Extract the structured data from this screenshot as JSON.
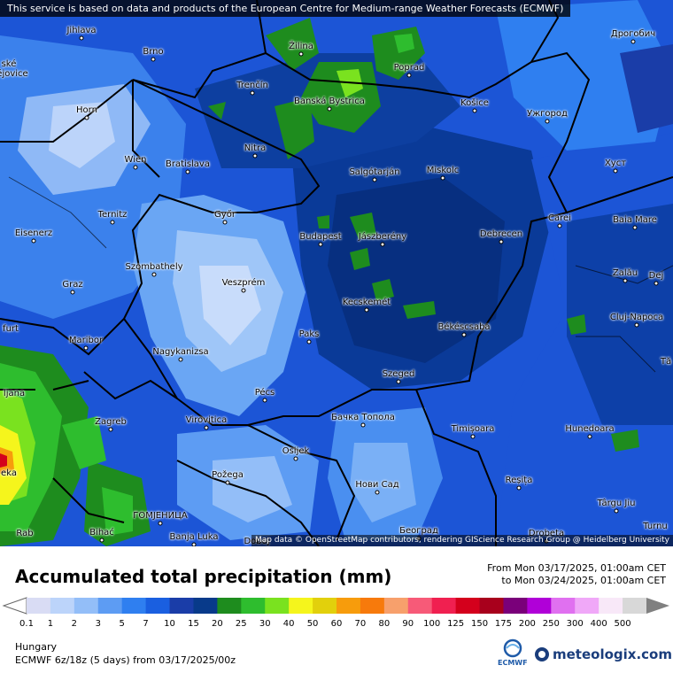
{
  "map": {
    "attribution_top": "This service is based on data and products of the European Centre for Medium-range Weather Forecasts (ECMWF)",
    "attribution_bottom": "Map data © OpenStreetMap contributors, rendering GIScience Research Group @ Heidelberg University",
    "cities": [
      {
        "name": "Jihlava"
      },
      {
        "name": "Brno"
      },
      {
        "name": "Žilina"
      },
      {
        "name": "Poprad"
      },
      {
        "name": "Дрогобич"
      },
      {
        "name": "Trenčín"
      },
      {
        "name": "Banská Bystrica"
      },
      {
        "name": "Košice"
      },
      {
        "name": "Ужгород"
      },
      {
        "name": "Horn"
      },
      {
        "name": "Nitra"
      },
      {
        "name": "Wien"
      },
      {
        "name": "Bratislava"
      },
      {
        "name": "Salgótarján"
      },
      {
        "name": "Miskolc"
      },
      {
        "name": "Хуст"
      },
      {
        "name": "Ternitz"
      },
      {
        "name": "Győr"
      },
      {
        "name": "Carei"
      },
      {
        "name": "Baia Mare"
      },
      {
        "name": "Eisenerz"
      },
      {
        "name": "Budapest"
      },
      {
        "name": "Jászberény"
      },
      {
        "name": "Debrecen"
      },
      {
        "name": "Szombathely"
      },
      {
        "name": "Zalău"
      },
      {
        "name": "Graz"
      },
      {
        "name": "Veszprém"
      },
      {
        "name": "Dej"
      },
      {
        "name": "Kecskemét"
      },
      {
        "name": "Cluj-Napoca"
      },
      {
        "name": "Maribor"
      },
      {
        "name": "Paks"
      },
      {
        "name": "Békéscsaba"
      },
      {
        "name": "Nagykanizsa"
      },
      {
        "name": "Szeged"
      },
      {
        "name": "Pécs"
      },
      {
        "name": "Zagreb"
      },
      {
        "name": "Virovitica"
      },
      {
        "name": "Бачка Топола"
      },
      {
        "name": "Timișoara"
      },
      {
        "name": "Hunedoara"
      },
      {
        "name": "Osijek"
      },
      {
        "name": "Požega"
      },
      {
        "name": "Нови Сад"
      },
      {
        "name": "Reșița"
      },
      {
        "name": "ГОМЈЕНИЦА"
      },
      {
        "name": "Târgu Jiu"
      },
      {
        "name": "Bihać"
      },
      {
        "name": "Banja Luka"
      },
      {
        "name": "Doboj"
      },
      {
        "name": "Београд"
      },
      {
        "name": "Drobeta"
      }
    ],
    "edge_fragments": [
      "ské",
      "ějovice",
      "furt",
      "ljana",
      "eka",
      "Rab",
      "Tă",
      "Turnu"
    ]
  },
  "legend": {
    "title": "Accumulated total precipitation (mm)",
    "from_text": "From Mon 03/17/2025, 01:00am CET",
    "to_text": "to Mon 03/24/2025, 01:00am CET",
    "ticks": [
      "0.1",
      "1",
      "2",
      "3",
      "5",
      "7",
      "10",
      "15",
      "20",
      "25",
      "30",
      "40",
      "50",
      "60",
      "70",
      "80",
      "90",
      "100",
      "125",
      "150",
      "175",
      "200",
      "250",
      "300",
      "400",
      "500"
    ],
    "colors": [
      "#d9dcf4",
      "#bcd4fa",
      "#93bef8",
      "#5d9cf3",
      "#2f7ff0",
      "#1a5fe0",
      "#1a3da8",
      "#083a8a",
      "#1e8c1e",
      "#2ebd2e",
      "#7ae21f",
      "#f5f51c",
      "#e2d00c",
      "#f79c0c",
      "#f77a0c",
      "#f7a06c",
      "#f75a78",
      "#f02050",
      "#d4001c",
      "#a8001c",
      "#7a007a",
      "#b000d8",
      "#e070f0",
      "#f0a8f8",
      "#f8e8f8",
      "#d8d8d8"
    ]
  },
  "footer": {
    "region": "Hungary",
    "model": "ECMWF 6z/18z (5 days) from 03/17/2025/00z",
    "ecmwf_logo_text": "ECMWF",
    "brand": "meteologix.com"
  }
}
